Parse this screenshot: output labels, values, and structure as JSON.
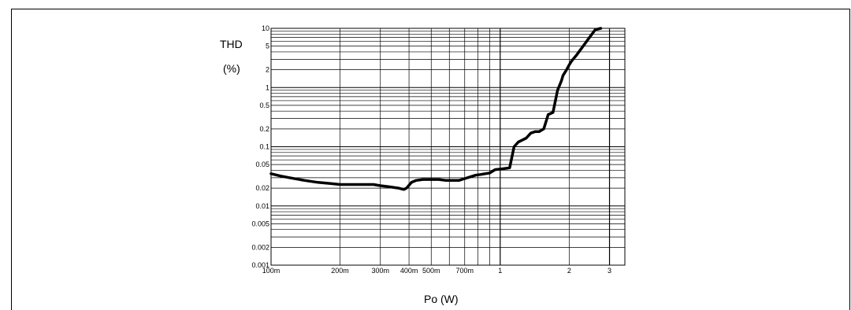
{
  "chart_data": {
    "type": "line",
    "title": "",
    "ylabel_line1": "THD",
    "ylabel_line2": "(%)",
    "xlabel": "Po (W)",
    "x_scale": "log",
    "y_scale": "log",
    "xlim": [
      0.1,
      3.5
    ],
    "ylim": [
      0.001,
      10
    ],
    "grid": true,
    "line_color": "#000000",
    "x_tick_labels": [
      {
        "value": 0.1,
        "label": "100m"
      },
      {
        "value": 0.2,
        "label": "200m"
      },
      {
        "value": 0.3,
        "label": "300m"
      },
      {
        "value": 0.4,
        "label": "400m"
      },
      {
        "value": 0.5,
        "label": "500m"
      },
      {
        "value": 0.7,
        "label": "700m"
      },
      {
        "value": 1,
        "label": "1"
      },
      {
        "value": 2,
        "label": "2"
      },
      {
        "value": 3,
        "label": "3"
      }
    ],
    "y_tick_labels": [
      {
        "value": 0.001,
        "label": "0.001"
      },
      {
        "value": 0.002,
        "label": "0.002"
      },
      {
        "value": 0.005,
        "label": "0.005"
      },
      {
        "value": 0.01,
        "label": "0.01"
      },
      {
        "value": 0.02,
        "label": "0.02"
      },
      {
        "value": 0.05,
        "label": "0.05"
      },
      {
        "value": 0.1,
        "label": "0.1"
      },
      {
        "value": 0.2,
        "label": "0.2"
      },
      {
        "value": 0.5,
        "label": "0.5"
      },
      {
        "value": 1,
        "label": "1"
      },
      {
        "value": 2,
        "label": "2"
      },
      {
        "value": 5,
        "label": "5"
      },
      {
        "value": 10,
        "label": "10"
      }
    ],
    "series": [
      {
        "x": [
          0.1,
          0.11,
          0.12,
          0.14,
          0.16,
          0.18,
          0.2,
          0.22,
          0.24,
          0.26,
          0.28,
          0.3,
          0.33,
          0.36,
          0.38,
          0.39,
          0.41,
          0.43,
          0.46,
          0.5,
          0.54,
          0.58,
          0.62,
          0.66,
          0.7,
          0.74,
          0.78,
          0.82,
          0.86,
          0.9,
          0.95,
          1.0,
          1.05,
          1.1,
          1.15,
          1.2,
          1.25,
          1.3,
          1.36,
          1.42,
          1.48,
          1.55,
          1.62,
          1.7,
          1.78,
          1.85,
          1.88,
          1.95,
          2.0,
          2.05,
          2.15,
          2.3,
          2.45,
          2.6,
          2.75
        ],
        "y": [
          0.035,
          0.032,
          0.03,
          0.027,
          0.025,
          0.024,
          0.023,
          0.023,
          0.023,
          0.023,
          0.023,
          0.022,
          0.021,
          0.02,
          0.019,
          0.02,
          0.025,
          0.027,
          0.028,
          0.028,
          0.028,
          0.027,
          0.027,
          0.027,
          0.029,
          0.031,
          0.033,
          0.034,
          0.035,
          0.036,
          0.041,
          0.042,
          0.043,
          0.044,
          0.1,
          0.12,
          0.13,
          0.14,
          0.17,
          0.18,
          0.18,
          0.2,
          0.35,
          0.38,
          0.9,
          1.3,
          1.6,
          2.0,
          2.4,
          2.8,
          3.5,
          5.0,
          7.0,
          9.5,
          11.0
        ]
      }
    ]
  }
}
